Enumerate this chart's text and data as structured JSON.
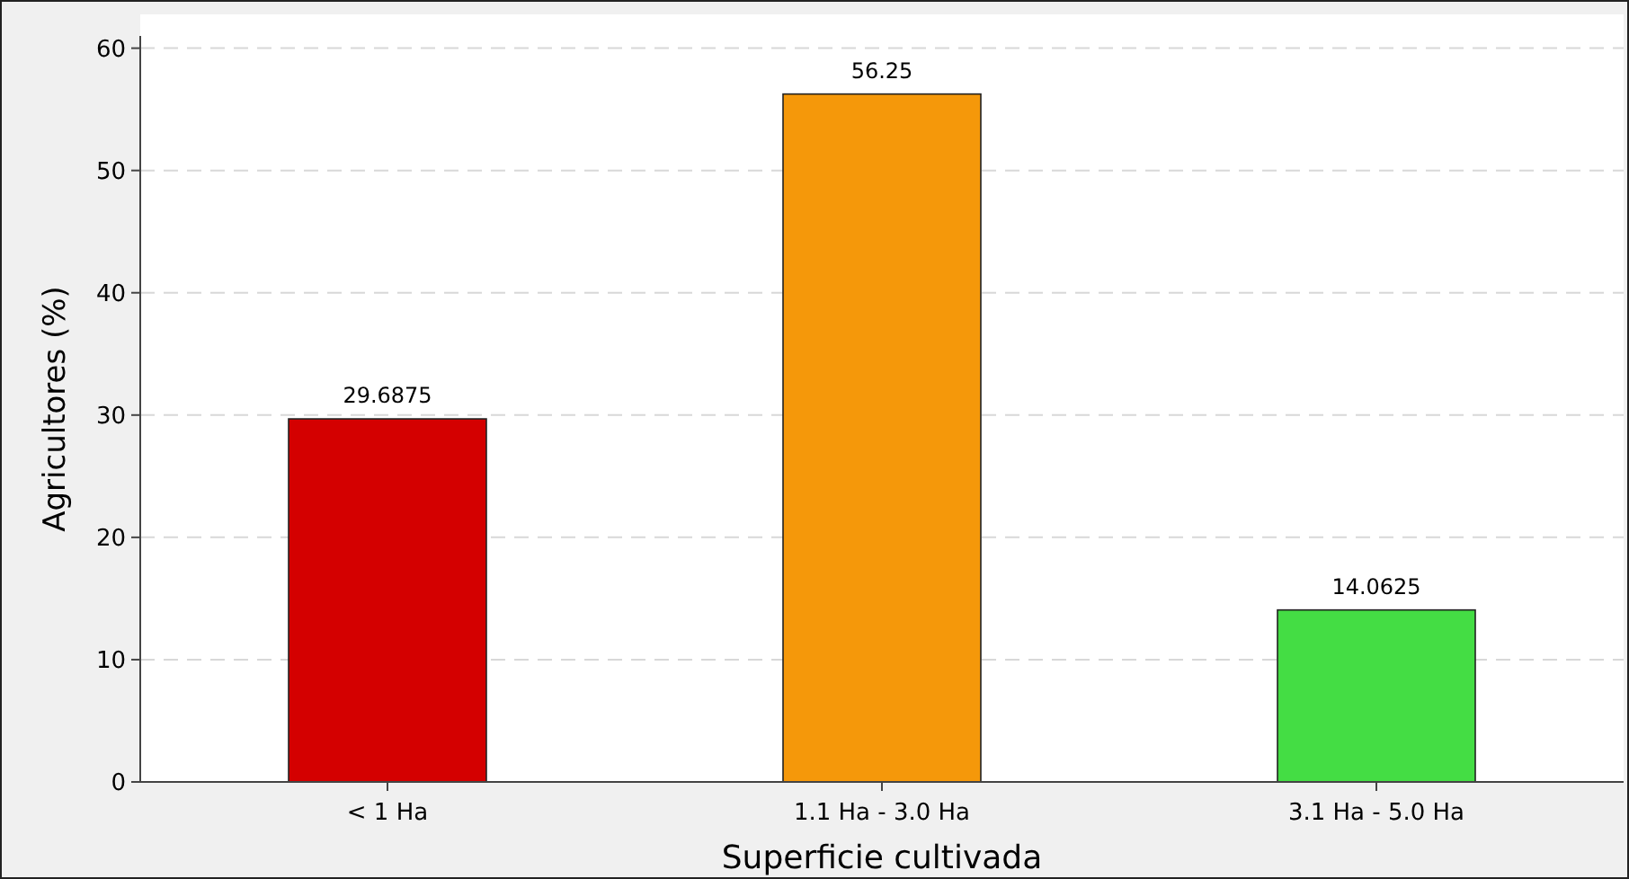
{
  "chart_data": {
    "type": "bar",
    "xlabel": "Superficie cultivada",
    "ylabel": "Agricultores (%)",
    "categories": [
      "< 1 Ha",
      "1.1 Ha - 3.0 Ha",
      "3.1 Ha - 5.0 Ha"
    ],
    "values": [
      29.6875,
      56.25,
      14.0625
    ],
    "colors": [
      "#d40000",
      "#f5980a",
      "#44dd44"
    ],
    "ylim": [
      0,
      61
    ],
    "yticks": [
      0,
      10,
      20,
      30,
      40,
      50,
      60
    ],
    "grid": "y",
    "data_labels": true
  }
}
